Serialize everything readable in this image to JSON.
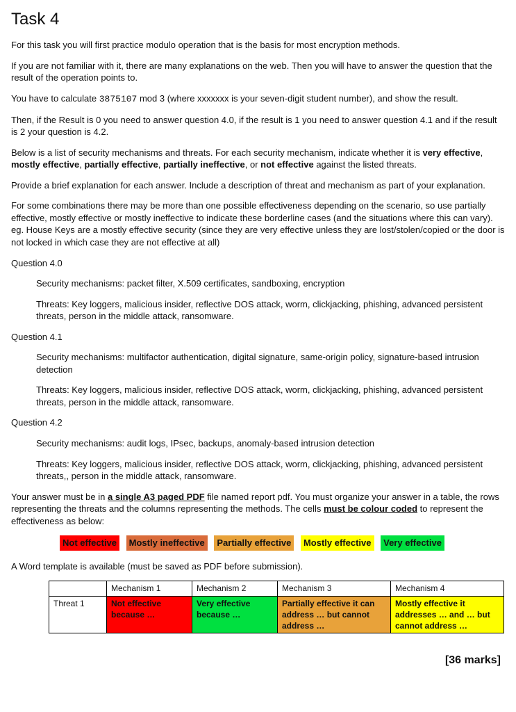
{
  "title": "Task 4",
  "p1": "For this task you will first practice modulo operation that is the basis for most encryption methods.",
  "p2": "If you are not familiar with it, there are many explanations on the web. Then you will have to answer the question that the result of the operation points to.",
  "p3a": "You have to calculate ",
  "p3_code": "3875107",
  "p3b": " mod 3 (where xxxxxxx is your seven-digit student number), and show the result.",
  "p4": "Then, if the Result is 0 you need to answer question 4.0, if the result is 1 you need to answer question 4.1 and if the result is 2 your question is 4.2.",
  "p5a": "Below is a list of security mechanisms and threats. For each security mechanism, indicate whether it is ",
  "p5_ve": "very effective",
  "p5_me": "mostly effective",
  "p5_pe": "partially effective",
  "p5_pi": "partially ineffective",
  "p5_ne": "not effective",
  "p5b": " against the listed threats.",
  "p6": "Provide a brief explanation for each answer. Include a description of threat and mechanism as part of your explanation.",
  "p7": "For some combinations there may be more than one possible effectiveness depending on the scenario, so use partially effective, mostly effective or mostly ineffective to indicate these borderline cases (and the situations where this can vary). eg. House Keys are a mostly effective security (since they are very effective unless they are lost/stolen/copied or the door is not locked in which case they are not effective at all)",
  "q40_h": "Question 4.0",
  "q40_m": "Security mechanisms: packet filter, X.509 certificates, sandboxing, encryption",
  "q40_t": "Threats: Key loggers, malicious insider, reflective DOS attack, worm, clickjacking, phishing, advanced persistent threats, person in the middle attack, ransomware.",
  "q41_h": "Question 4.1",
  "q41_m": "Security mechanisms: multifactor authentication, digital signature, same-origin policy, signature-based intrusion detection",
  "q41_t": "Threats: Key loggers, malicious insider, reflective DOS attack, worm, clickjacking, phishing, advanced persistent threats, person in the middle attack, ransomware.",
  "q42_h": "Question 4.2",
  "q42_m": "Security mechanisms: audit logs, IPsec, backups, anomaly-based intrusion detection",
  "q42_t": "Threats: Key loggers, malicious insider, reflective DOS attack, worm, clickjacking, phishing, advanced persistent threats,, person in the middle attack, ransomware.",
  "ans_a": "Your answer must be in ",
  "ans_u1": "a single A3 paged PDF",
  "ans_b": " file named report pdf. You must organize your answer in a table, the rows representing the threats and the columns representing the methods. The cells ",
  "ans_u2": "must be colour coded",
  "ans_c": " to represent the effectiveness as below:",
  "legend": {
    "ne": {
      "label": "Not effective",
      "bg": "#ff0000"
    },
    "mi": {
      "label": "Mostly ineffective",
      "bg": "#d96b3a"
    },
    "pe": {
      "label": "Partially effective",
      "bg": "#e8a23a"
    },
    "me": {
      "label": "Mostly effective",
      "bg": "#ffff00"
    },
    "ve": {
      "label": "Very effective",
      "bg": "#00e040"
    }
  },
  "template_line": "A Word template is available (must be saved as PDF before submission).",
  "table": {
    "cols": [
      "",
      "Mechanism 1",
      "Mechanism 2",
      "Mechanism 3",
      "Mechanism 4"
    ],
    "widths": [
      70,
      110,
      110,
      150,
      150
    ],
    "rowhead": "Threat 1",
    "cells": [
      {
        "text": "Not effective because …",
        "bg": "#ff0000"
      },
      {
        "text": "Very effective because …",
        "bg": "#00e040"
      },
      {
        "text": "Partially effective it can address … but cannot address …",
        "bg": "#e8a23a"
      },
      {
        "text": "Mostly effective it addresses … and … but cannot address …",
        "bg": "#ffff00"
      }
    ]
  },
  "marks": "[36 marks]",
  "sep_comma": ", ",
  "sep_or": ", or "
}
